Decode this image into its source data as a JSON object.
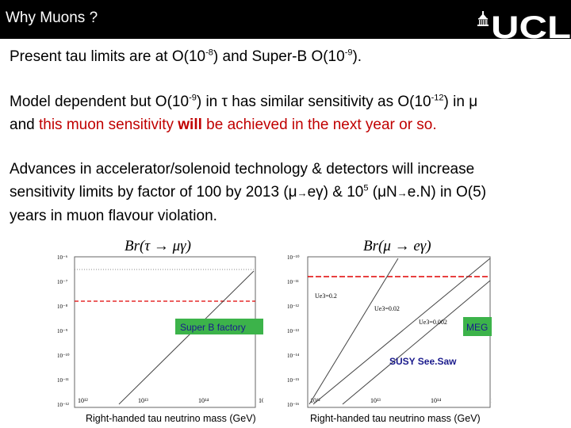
{
  "slide": {
    "title": "Why Muons ?",
    "logo_text": "UCL"
  },
  "para1": {
    "a": "Present tau limits are at O(10",
    "e1": "-8",
    "b": ") and Super-B O(10",
    "e2": "-9",
    "c": ")."
  },
  "para2": {
    "a": "Model dependent but O(10",
    "e1": "-9",
    "b": ") in τ has similar sensitivity as O(10",
    "e2": "-12",
    "c": ") in μ",
    "d": "and ",
    "red1": "this muon sensitivity ",
    "bold": "will",
    "red2": " be achieved in the next year or so."
  },
  "para3": {
    "line1": "Advances in accelerator/solenoid technology & detectors will increase",
    "a": "sensitivity limits by factor of 100 by 2013 (μ",
    "arrow1": "→",
    "b": "eγ) & 10",
    "e1": "5",
    "c": " (μN",
    "arrow2": "→",
    "d": "e.N) in O(5)",
    "line3": "years in muon flavour violation."
  },
  "colors": {
    "header_bg": "#000000",
    "highlight_red": "#c00000",
    "box_green": "#3cb34a",
    "dashed_red": "#e00000",
    "label_blue": "#1a1a8c"
  },
  "chart_data": [
    {
      "type": "line",
      "title": "Br(τ → μγ)",
      "xlabel": "Right-handed tau neutrino mass (GeV)",
      "x_scale": "log",
      "y_scale": "log",
      "xlim": [
        100000000000.0,
        1000000000000000.0
      ],
      "ylim": [
        1e-12,
        1e-06
      ],
      "x_ticks": [
        "10¹²",
        "10¹³",
        "10¹⁴",
        "10¹⁵"
      ],
      "y_ticks": [
        "10⁻⁶",
        "10⁻⁷",
        "10⁻⁸",
        "10⁻⁹",
        "10⁻¹⁰",
        "10⁻¹¹",
        "10⁻¹²"
      ],
      "series": [
        {
          "values": [
            [
              2000000000000.0,
              1e-12
            ],
            [
              1000000000000000.0,
              1e-07
            ]
          ],
          "style": "solid"
        }
      ],
      "reference_lines": [
        {
          "y": 1e-08,
          "style": "dashed",
          "color": "#e00000"
        },
        {
          "y": 1e-07,
          "style": "dotted",
          "color": "#888888"
        }
      ],
      "annotations": [
        "Super B factory"
      ]
    },
    {
      "type": "line",
      "title": "Br(μ → eγ)",
      "xlabel": "Right-handed tau neutrino mass (GeV)",
      "x_scale": "log",
      "y_scale": "log",
      "xlim": [
        100000000000.0,
        1000000000000000.0
      ],
      "ylim": [
        1e-16,
        1e-10
      ],
      "x_ticks": [
        "10¹²",
        "10¹³",
        "10¹⁴",
        "10¹⁵"
      ],
      "y_ticks": [
        "10⁻¹⁰",
        "10⁻¹¹",
        "10⁻¹²",
        "10⁻¹³",
        "10⁻¹⁴",
        "10⁻¹⁵",
        "10⁻¹⁶"
      ],
      "series": [
        {
          "name": "Ue3=0.2",
          "values": [
            [
              100000000000.0,
              1e-16
            ],
            [
              10000000000000.0,
              1e-10
            ]
          ],
          "style": "solid"
        },
        {
          "name": "Ue3=0.02",
          "values": [
            [
              100000000000.0,
              1e-16
            ],
            [
              1000000000000000.0,
              1e-10
            ]
          ],
          "style": "solid"
        },
        {
          "name": "Ue3=0.002",
          "values": [
            [
              2000000000000.0,
              1e-16
            ],
            [
              1000000000000000.0,
              1e-11
            ]
          ],
          "style": "solid"
        }
      ],
      "reference_lines": [
        {
          "y": 1e-11,
          "style": "dashed",
          "color": "#e00000"
        }
      ],
      "annotations": [
        "MEG",
        "SUSY See.Saw"
      ]
    }
  ]
}
